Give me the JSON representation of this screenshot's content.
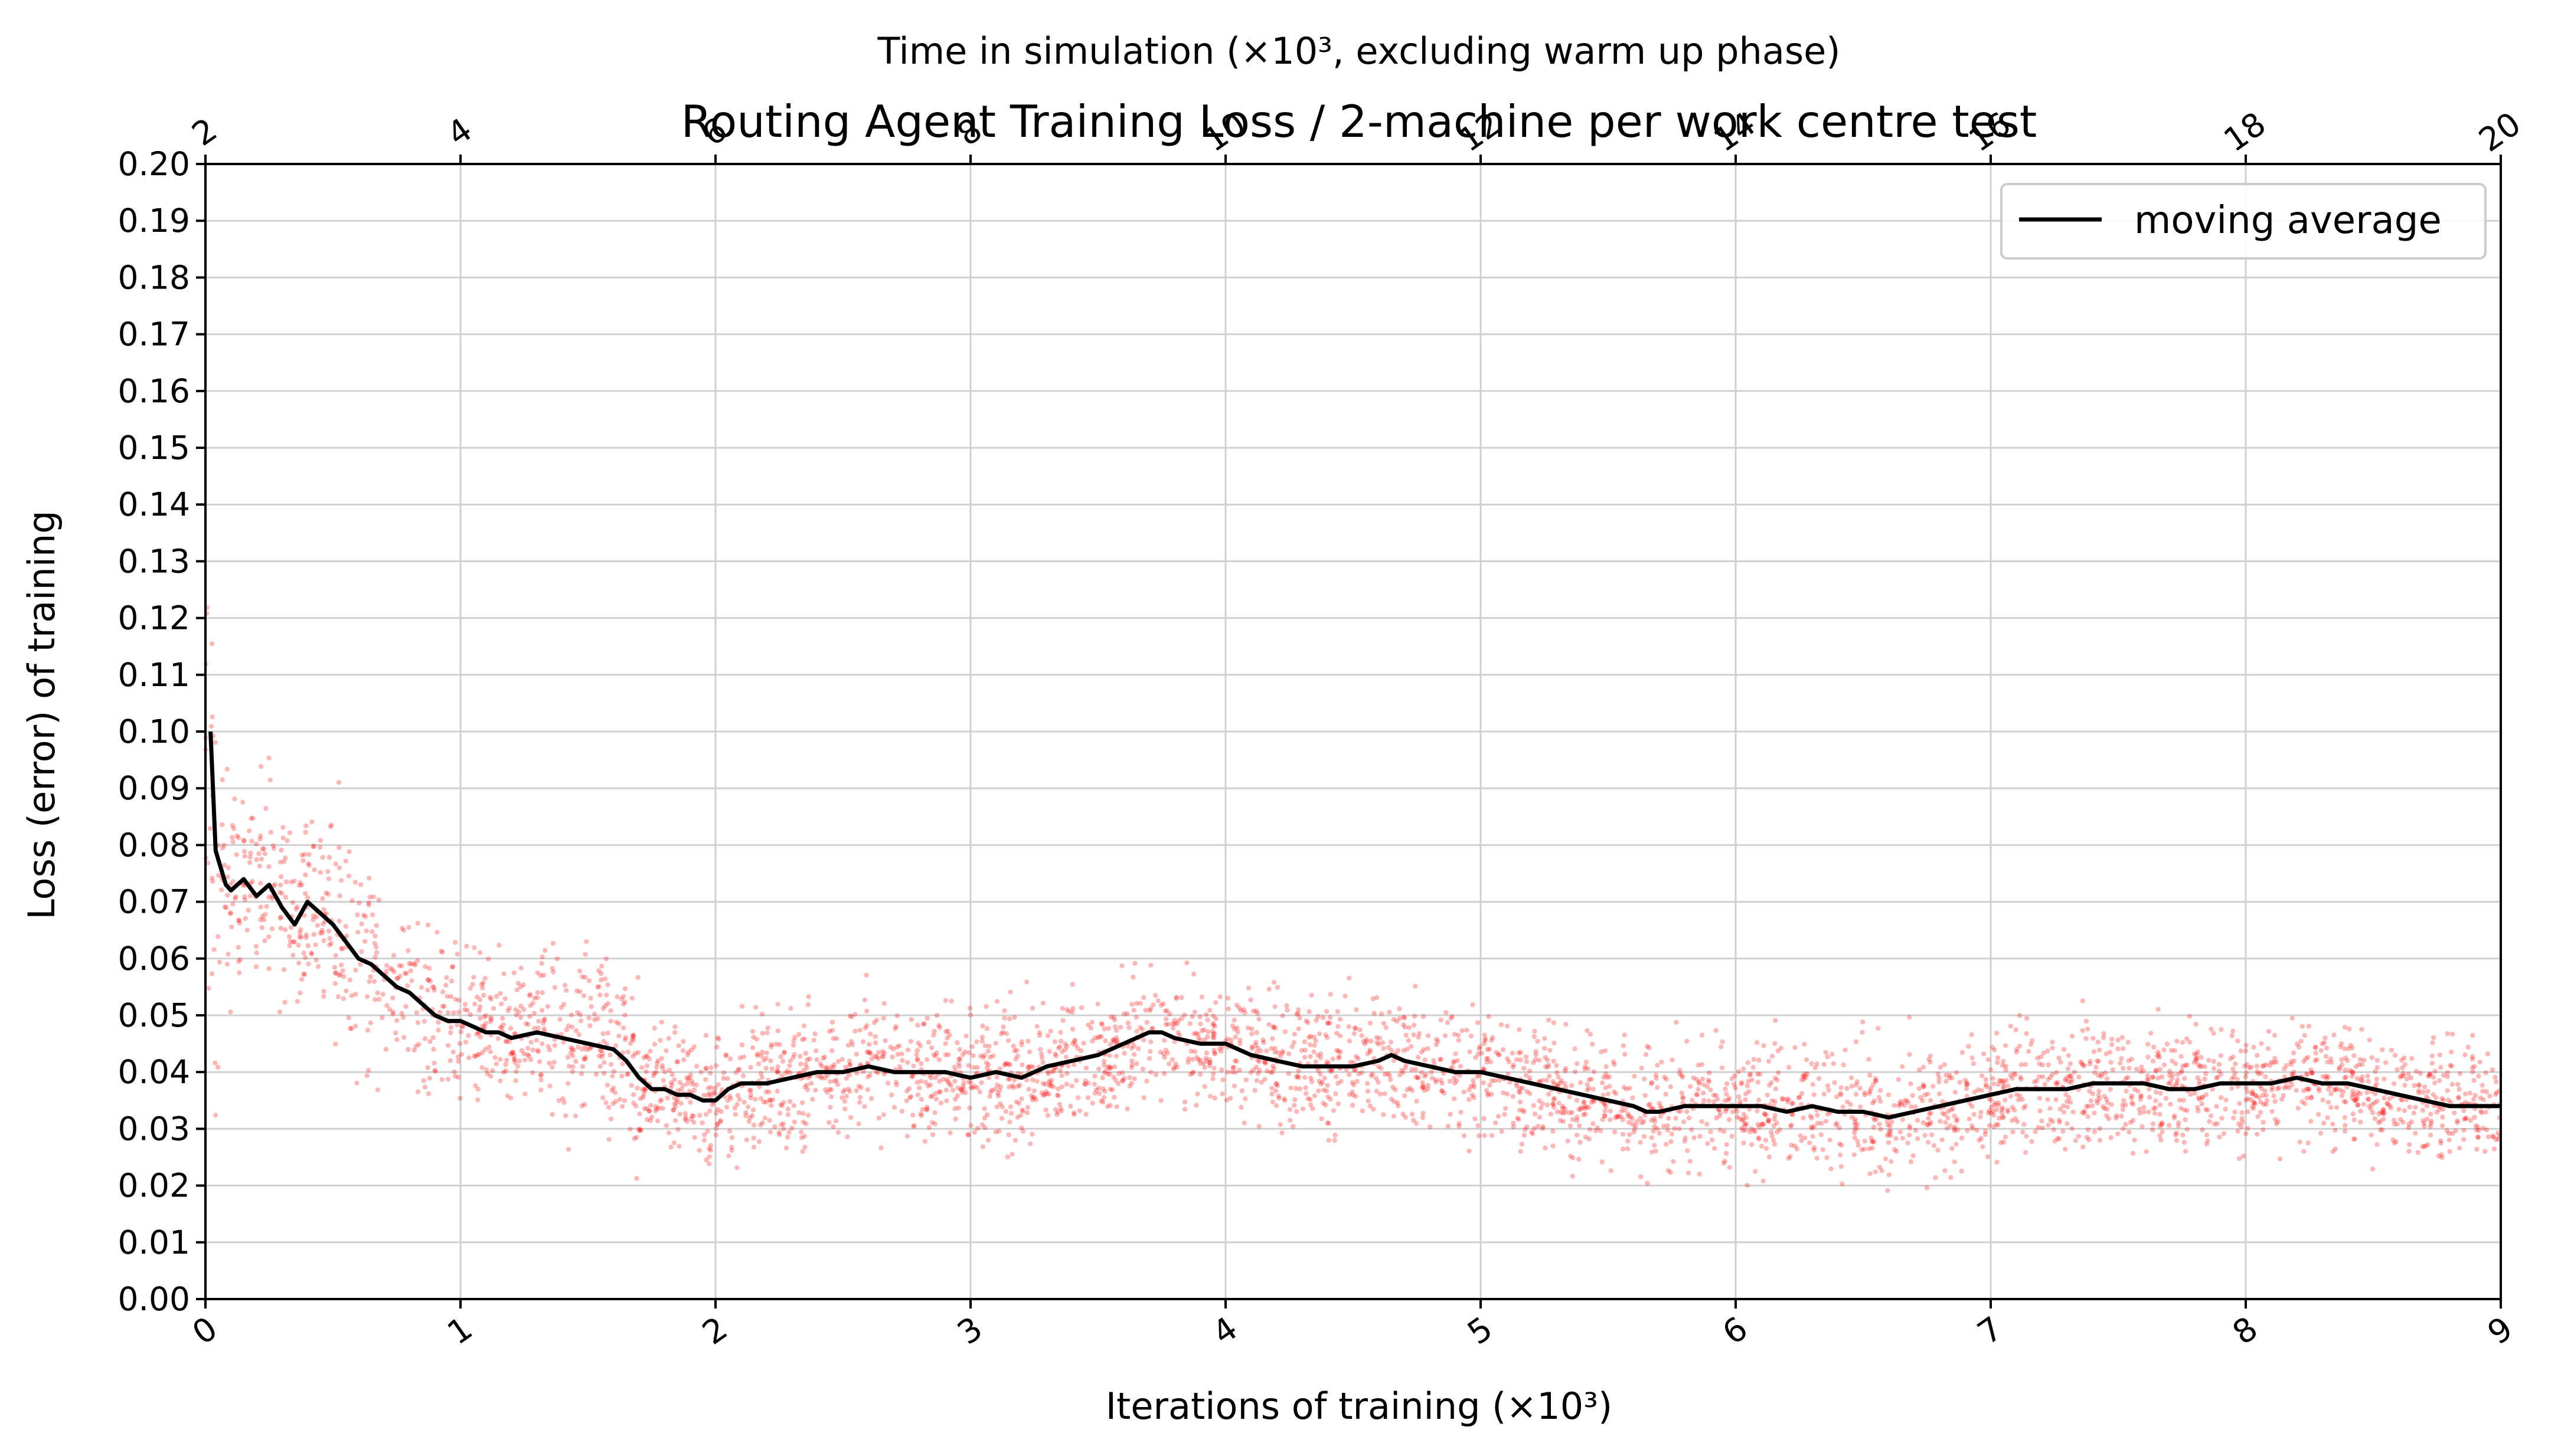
{
  "chart_data": {
    "type": "scatter",
    "title": "Routing Agent Training Loss / 2-machine per work centre test",
    "xlabel_main": "Iterations of training",
    "xlabel_main_unit": "(×10³)",
    "xlabel_top": "Time in simulation",
    "xlabel_top_unit": "(×10³, excluding warm up phase)",
    "ylabel": "Loss (error) of training",
    "xlim": [
      0,
      9
    ],
    "ylim": [
      0,
      0.2
    ],
    "x_ticks": [
      "0",
      "1",
      "2",
      "3",
      "4",
      "5",
      "6",
      "7",
      "8",
      "9"
    ],
    "x_top_ticks": [
      "2",
      "4",
      "6",
      "8",
      "10",
      "12",
      "14",
      "16",
      "18",
      "20"
    ],
    "y_ticks": [
      "0.00",
      "0.01",
      "0.02",
      "0.03",
      "0.04",
      "0.05",
      "0.06",
      "0.07",
      "0.08",
      "0.09",
      "0.10",
      "0.11",
      "0.12",
      "0.13",
      "0.14",
      "0.15",
      "0.16",
      "0.17",
      "0.18",
      "0.19",
      "0.20"
    ],
    "grid": true,
    "legend_position": "top-right",
    "series": [
      {
        "name": "moving average",
        "kind": "line",
        "color": "#000000",
        "x": [
          0.02,
          0.04,
          0.06,
          0.08,
          0.1,
          0.15,
          0.2,
          0.25,
          0.3,
          0.35,
          0.4,
          0.45,
          0.5,
          0.55,
          0.6,
          0.65,
          0.7,
          0.75,
          0.8,
          0.85,
          0.9,
          0.95,
          1.0,
          1.05,
          1.1,
          1.15,
          1.2,
          1.3,
          1.4,
          1.5,
          1.6,
          1.65,
          1.7,
          1.75,
          1.8,
          1.85,
          1.9,
          1.95,
          2.0,
          2.05,
          2.1,
          2.2,
          2.3,
          2.4,
          2.5,
          2.6,
          2.7,
          2.8,
          2.9,
          3.0,
          3.1,
          3.2,
          3.3,
          3.4,
          3.5,
          3.6,
          3.7,
          3.75,
          3.8,
          3.9,
          4.0,
          4.1,
          4.2,
          4.3,
          4.4,
          4.5,
          4.6,
          4.65,
          4.7,
          4.8,
          4.9,
          5.0,
          5.1,
          5.2,
          5.3,
          5.4,
          5.5,
          5.6,
          5.65,
          5.7,
          5.8,
          5.9,
          6.0,
          6.1,
          6.2,
          6.3,
          6.4,
          6.5,
          6.6,
          6.7,
          6.8,
          6.9,
          7.0,
          7.1,
          7.2,
          7.3,
          7.4,
          7.5,
          7.6,
          7.7,
          7.8,
          7.9,
          8.0,
          8.1,
          8.2,
          8.3,
          8.4,
          8.5,
          8.6,
          8.7,
          8.8,
          8.9,
          9.0
        ],
        "y": [
          0.1,
          0.079,
          0.076,
          0.073,
          0.072,
          0.074,
          0.071,
          0.073,
          0.069,
          0.066,
          0.07,
          0.068,
          0.066,
          0.063,
          0.06,
          0.059,
          0.057,
          0.055,
          0.054,
          0.052,
          0.05,
          0.049,
          0.049,
          0.048,
          0.047,
          0.047,
          0.046,
          0.047,
          0.046,
          0.045,
          0.044,
          0.042,
          0.039,
          0.037,
          0.037,
          0.036,
          0.036,
          0.035,
          0.035,
          0.037,
          0.038,
          0.038,
          0.039,
          0.04,
          0.04,
          0.041,
          0.04,
          0.04,
          0.04,
          0.039,
          0.04,
          0.039,
          0.041,
          0.042,
          0.043,
          0.045,
          0.047,
          0.047,
          0.046,
          0.045,
          0.045,
          0.043,
          0.042,
          0.041,
          0.041,
          0.041,
          0.042,
          0.043,
          0.042,
          0.041,
          0.04,
          0.04,
          0.039,
          0.038,
          0.037,
          0.036,
          0.035,
          0.034,
          0.033,
          0.033,
          0.034,
          0.034,
          0.034,
          0.034,
          0.033,
          0.034,
          0.033,
          0.033,
          0.032,
          0.033,
          0.034,
          0.035,
          0.036,
          0.037,
          0.037,
          0.037,
          0.038,
          0.038,
          0.038,
          0.037,
          0.037,
          0.038,
          0.038,
          0.038,
          0.039,
          0.038,
          0.038,
          0.037,
          0.036,
          0.035,
          0.034,
          0.034,
          0.034
        ]
      },
      {
        "name": "",
        "kind": "scatter",
        "color": "#ff0000",
        "note_value": "individual loss values scattered around the moving average"
      }
    ]
  }
}
